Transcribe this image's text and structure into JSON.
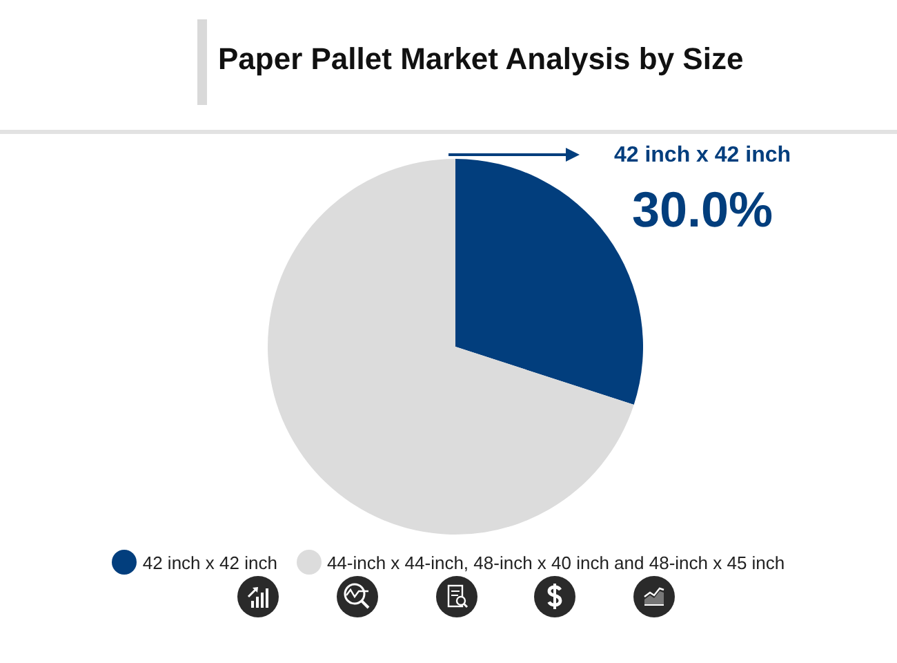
{
  "chart_data": {
    "type": "pie",
    "title": "Paper Pallet Market Analysis by Size",
    "categories": [
      "42 inch x 42 inch",
      "44-inch x 44-inch, 48-inch x 40 inch and 48-inch x 45 inch"
    ],
    "values": [
      30,
      70
    ],
    "colors": [
      "#023e7d",
      "#dcdcdc"
    ],
    "value_labels": [
      "30.0%",
      null
    ],
    "annotations": [
      "42 inch x 42 inch"
    ],
    "legend": "bottom"
  }
}
